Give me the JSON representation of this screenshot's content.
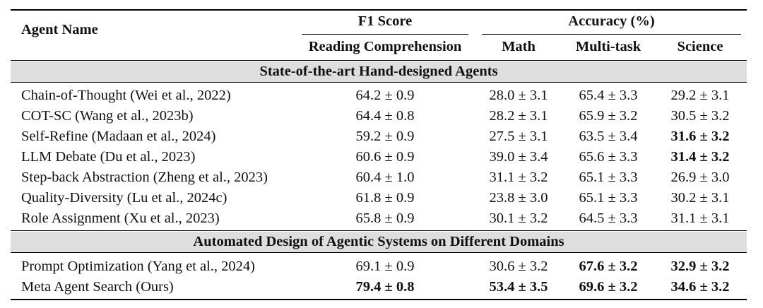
{
  "header": {
    "agent_name": "Agent Name",
    "group_f1": "F1 Score",
    "group_acc": "Accuracy (%)",
    "columns": [
      "Reading Comprehension",
      "Math",
      "Multi-task",
      "Science"
    ]
  },
  "sections": [
    {
      "title": "State-of-the-art Hand-designed Agents",
      "rows": [
        {
          "name": "Chain-of-Thought (Wei et al., 2022)",
          "cells": [
            {
              "v": "64.2 ± 0.9",
              "b": false
            },
            {
              "v": "28.0 ± 3.1",
              "b": false
            },
            {
              "v": "65.4 ± 3.3",
              "b": false
            },
            {
              "v": "29.2 ± 3.1",
              "b": false
            }
          ]
        },
        {
          "name": "COT-SC (Wang et al., 2023b)",
          "cells": [
            {
              "v": "64.4 ± 0.8",
              "b": false
            },
            {
              "v": "28.2 ± 3.1",
              "b": false
            },
            {
              "v": "65.9 ± 3.2",
              "b": false
            },
            {
              "v": "30.5 ± 3.2",
              "b": false
            }
          ]
        },
        {
          "name": "Self-Refine (Madaan et al., 2024)",
          "cells": [
            {
              "v": "59.2 ± 0.9",
              "b": false
            },
            {
              "v": "27.5 ± 3.1",
              "b": false
            },
            {
              "v": "63.5 ± 3.4",
              "b": false
            },
            {
              "v": "31.6 ± 3.2",
              "b": true
            }
          ]
        },
        {
          "name": "LLM Debate (Du et al., 2023)",
          "cells": [
            {
              "v": "60.6 ± 0.9",
              "b": false
            },
            {
              "v": "39.0 ± 3.4",
              "b": false
            },
            {
              "v": "65.6 ± 3.3",
              "b": false
            },
            {
              "v": "31.4 ± 3.2",
              "b": true
            }
          ]
        },
        {
          "name": "Step-back Abstraction (Zheng et al., 2023)",
          "cells": [
            {
              "v": "60.4 ± 1.0",
              "b": false
            },
            {
              "v": "31.1 ± 3.2",
              "b": false
            },
            {
              "v": "65.1 ± 3.3",
              "b": false
            },
            {
              "v": "26.9 ± 3.0",
              "b": false
            }
          ]
        },
        {
          "name": "Quality-Diversity (Lu et al., 2024c)",
          "cells": [
            {
              "v": "61.8 ± 0.9",
              "b": false
            },
            {
              "v": "23.8 ± 3.0",
              "b": false
            },
            {
              "v": "65.1 ± 3.3",
              "b": false
            },
            {
              "v": "30.2 ± 3.1",
              "b": false
            }
          ]
        },
        {
          "name": "Role Assignment (Xu et al., 2023)",
          "cells": [
            {
              "v": "65.8 ± 0.9",
              "b": false
            },
            {
              "v": "30.1 ± 3.2",
              "b": false
            },
            {
              "v": "64.5 ± 3.3",
              "b": false
            },
            {
              "v": "31.1 ± 3.1",
              "b": false
            }
          ]
        }
      ]
    },
    {
      "title": "Automated Design of Agentic Systems on Different Domains",
      "rows": [
        {
          "name": "Prompt Optimization (Yang et al., 2024)",
          "cells": [
            {
              "v": "69.1 ± 0.9",
              "b": false
            },
            {
              "v": "30.6 ± 3.2",
              "b": false
            },
            {
              "v": "67.6 ± 3.2",
              "b": true
            },
            {
              "v": "32.9 ± 3.2",
              "b": true
            }
          ]
        },
        {
          "name": "Meta Agent Search (Ours)",
          "cells": [
            {
              "v": "79.4 ± 0.8",
              "b": true
            },
            {
              "v": "53.4 ± 3.5",
              "b": true
            },
            {
              "v": "69.6 ± 3.2",
              "b": true
            },
            {
              "v": "34.6 ± 3.2",
              "b": true
            }
          ]
        }
      ]
    }
  ]
}
